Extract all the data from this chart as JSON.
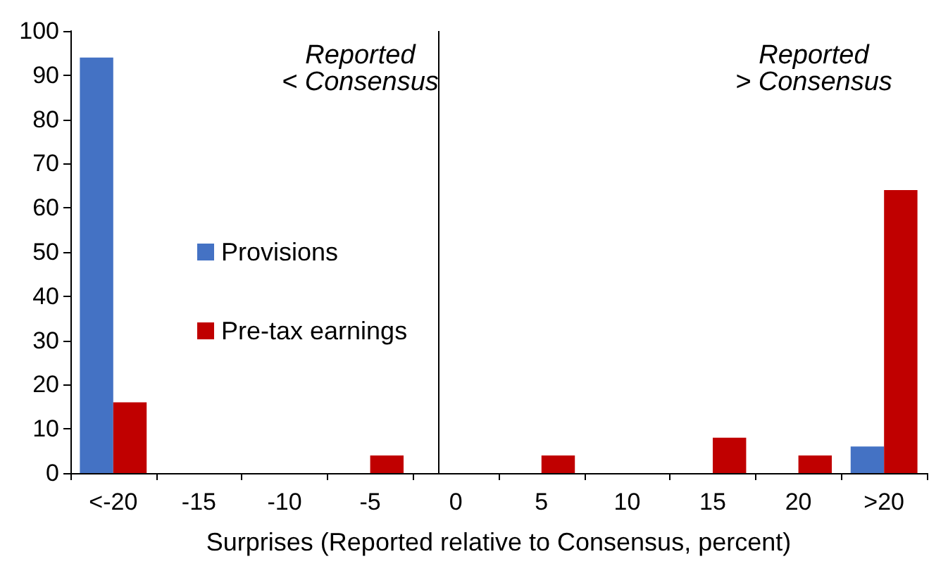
{
  "chart_data": {
    "type": "bar",
    "xlabel": "Surprises (Reported relative to Consensus, percent)",
    "categories": [
      "<-20",
      "-15",
      "-10",
      "-5",
      "0",
      "5",
      "10",
      "15",
      "20",
      ">20"
    ],
    "series": [
      {
        "name": "Provisions",
        "color": "#4472c4",
        "values": [
          94,
          0,
          0,
          0,
          0,
          0,
          0,
          0,
          0,
          6
        ]
      },
      {
        "name": "Pre-tax earnings",
        "color": "#c00000",
        "values": [
          16,
          0,
          0,
          4,
          0,
          4,
          0,
          8,
          4,
          64
        ]
      }
    ],
    "ylim": [
      0,
      100
    ],
    "yticks": [
      0,
      10,
      20,
      30,
      40,
      50,
      60,
      70,
      80,
      90,
      100
    ],
    "grid": false,
    "legend": "left",
    "ref_lines": [
      {
        "axis": "x",
        "value": "0",
        "color": "#000000"
      }
    ],
    "annotations": [
      "Reported\n< Consensus",
      "Reported\n> Consensus"
    ]
  }
}
